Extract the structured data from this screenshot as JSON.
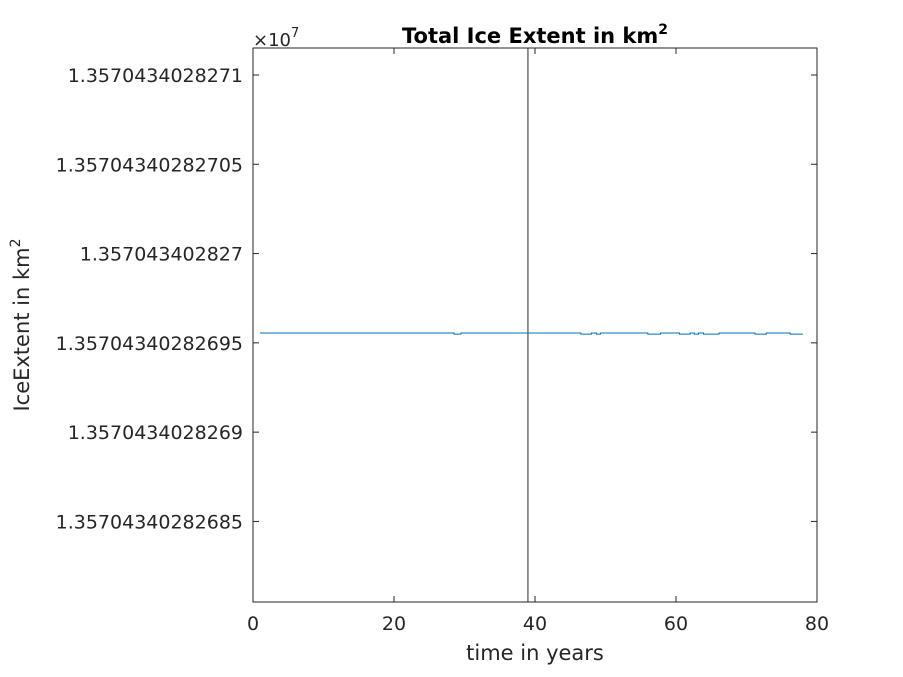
{
  "chart_data": {
    "type": "line",
    "title": "Total Ice Extent in km",
    "title_superscript": "2",
    "xlabel": "time in years",
    "ylabel": "IceExtent in km",
    "ylabel_superscript": "2",
    "y_exponent": {
      "base": "×10",
      "power": "7"
    },
    "xlim": [
      0,
      80
    ],
    "ylim": [
      1.357043402826805,
      1.357043402827115
    ],
    "x_ticks": [
      0,
      20,
      40,
      60,
      80
    ],
    "x_tick_labels": [
      "0",
      "20",
      "40",
      "60",
      "80"
    ],
    "y_ticks": [
      1.3570434028271,
      1.35704340282705,
      1.357043402827,
      1.35704340282695,
      1.3570434028269,
      1.35704340282685
    ],
    "y_tick_labels": [
      "1.3570434028271",
      "1.35704340282705",
      "1.357043402827",
      "1.35704340282695",
      "1.3570434028269",
      "1.35704340282685"
    ],
    "grid": false,
    "vertical_marker_x": 39,
    "series": [
      {
        "color": "#0072BD",
        "x": [
          1,
          28.5,
          28.5,
          29.5,
          29.5,
          46.5,
          46.5,
          48.0,
          48.0,
          48.7,
          48.7,
          49.3,
          49.3,
          56.0,
          56.0,
          57.8,
          57.8,
          60.5,
          60.5,
          62.0,
          62.0,
          62.6,
          62.6,
          63.2,
          63.2,
          63.9,
          63.9,
          66.1,
          66.1,
          71.2,
          71.2,
          72.8,
          72.8,
          76.2,
          76.2,
          78
        ],
        "y": [
          1.3570434028269556,
          1.3570434028269556,
          1.357043402826955,
          1.357043402826955,
          1.3570434028269556,
          1.3570434028269556,
          1.357043402826955,
          1.357043402826955,
          1.3570434028269556,
          1.3570434028269556,
          1.357043402826955,
          1.357043402826955,
          1.3570434028269556,
          1.3570434028269556,
          1.357043402826955,
          1.357043402826955,
          1.3570434028269556,
          1.3570434028269556,
          1.357043402826955,
          1.357043402826955,
          1.3570434028269556,
          1.3570434028269556,
          1.357043402826955,
          1.357043402826955,
          1.3570434028269556,
          1.3570434028269556,
          1.357043402826955,
          1.357043402826955,
          1.3570434028269556,
          1.3570434028269556,
          1.357043402826955,
          1.357043402826955,
          1.3570434028269556,
          1.3570434028269556,
          1.357043402826955,
          1.357043402826955
        ]
      }
    ]
  }
}
